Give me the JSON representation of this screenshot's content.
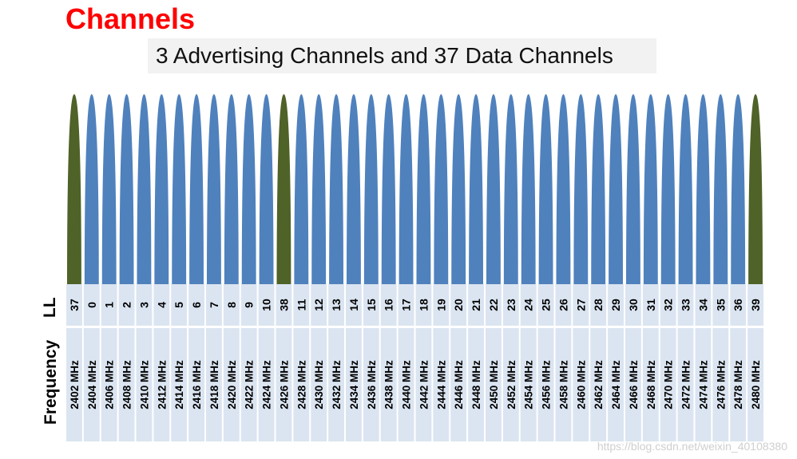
{
  "title": "Channels",
  "subtitle": "3 Advertising Channels and 37 Data Channels",
  "row_labels": {
    "ll": "LL",
    "frequency": "Frequency"
  },
  "colors": {
    "advertising": "#4f6228",
    "data": "#4f81bd",
    "cell": "#dbe5f1"
  },
  "watermark": "https://blog.csdn.net/weixin_40108380",
  "channels": [
    {
      "ll": "37",
      "freq": "2402 MHz",
      "type": "advertising"
    },
    {
      "ll": "0",
      "freq": "2404 MHz",
      "type": "data"
    },
    {
      "ll": "1",
      "freq": "2406 MHz",
      "type": "data"
    },
    {
      "ll": "2",
      "freq": "2408 MHz",
      "type": "data"
    },
    {
      "ll": "3",
      "freq": "2410 MHz",
      "type": "data"
    },
    {
      "ll": "4",
      "freq": "2412 MHz",
      "type": "data"
    },
    {
      "ll": "5",
      "freq": "2414 MHz",
      "type": "data"
    },
    {
      "ll": "6",
      "freq": "2416 MHz",
      "type": "data"
    },
    {
      "ll": "7",
      "freq": "2418 MHz",
      "type": "data"
    },
    {
      "ll": "8",
      "freq": "2420 MHz",
      "type": "data"
    },
    {
      "ll": "9",
      "freq": "2422 MHz",
      "type": "data"
    },
    {
      "ll": "10",
      "freq": "2424 MHz",
      "type": "data"
    },
    {
      "ll": "38",
      "freq": "2426 MHz",
      "type": "advertising"
    },
    {
      "ll": "11",
      "freq": "2428 MHz",
      "type": "data"
    },
    {
      "ll": "12",
      "freq": "2430 MHz",
      "type": "data"
    },
    {
      "ll": "13",
      "freq": "2432 MHz",
      "type": "data"
    },
    {
      "ll": "14",
      "freq": "2434 MHz",
      "type": "data"
    },
    {
      "ll": "15",
      "freq": "2436 MHz",
      "type": "data"
    },
    {
      "ll": "16",
      "freq": "2438 MHz",
      "type": "data"
    },
    {
      "ll": "17",
      "freq": "2440 MHz",
      "type": "data"
    },
    {
      "ll": "18",
      "freq": "2442 MHz",
      "type": "data"
    },
    {
      "ll": "19",
      "freq": "2444 MHz",
      "type": "data"
    },
    {
      "ll": "20",
      "freq": "2446 MHz",
      "type": "data"
    },
    {
      "ll": "21",
      "freq": "2448 MHz",
      "type": "data"
    },
    {
      "ll": "22",
      "freq": "2450 MHz",
      "type": "data"
    },
    {
      "ll": "23",
      "freq": "2452 MHz",
      "type": "data"
    },
    {
      "ll": "24",
      "freq": "2454 MHz",
      "type": "data"
    },
    {
      "ll": "25",
      "freq": "2456 MHz",
      "type": "data"
    },
    {
      "ll": "26",
      "freq": "2458 MHz",
      "type": "data"
    },
    {
      "ll": "27",
      "freq": "2460 MHz",
      "type": "data"
    },
    {
      "ll": "28",
      "freq": "2462 MHz",
      "type": "data"
    },
    {
      "ll": "29",
      "freq": "2464 MHz",
      "type": "data"
    },
    {
      "ll": "30",
      "freq": "2466 MHz",
      "type": "data"
    },
    {
      "ll": "31",
      "freq": "2468 MHz",
      "type": "data"
    },
    {
      "ll": "32",
      "freq": "2470 MHz",
      "type": "data"
    },
    {
      "ll": "33",
      "freq": "2472 MHz",
      "type": "data"
    },
    {
      "ll": "34",
      "freq": "2474 MHz",
      "type": "data"
    },
    {
      "ll": "35",
      "freq": "2476 MHz",
      "type": "data"
    },
    {
      "ll": "36",
      "freq": "2478 MHz",
      "type": "data"
    },
    {
      "ll": "39",
      "freq": "2480 MHz",
      "type": "advertising"
    }
  ]
}
